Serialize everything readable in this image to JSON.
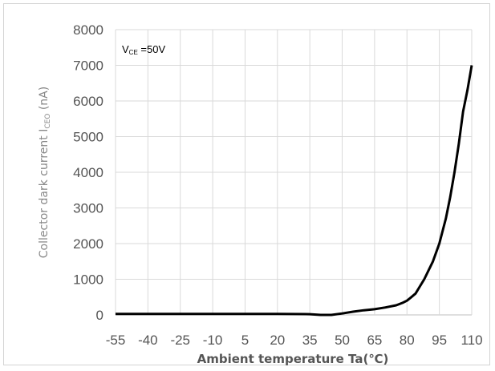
{
  "chart_data": {
    "type": "line",
    "title": "",
    "annotation": {
      "main": "V",
      "sub": "CE",
      "rest": " =50V"
    },
    "xlabel": "Ambient temperature Ta(℃)",
    "ylabel": {
      "main": "Collector dark current I",
      "sub": "CEO",
      "unit": " (nA)"
    },
    "x_ticks": [
      "-55",
      "-40",
      "-25",
      "-10",
      "5",
      "20",
      "35",
      "50",
      "65",
      "80",
      "95",
      "110"
    ],
    "y_ticks": [
      "0",
      "1000",
      "2000",
      "3000",
      "4000",
      "5000",
      "6000",
      "7000",
      "8000"
    ],
    "xlim": [
      -55,
      110
    ],
    "ylim": [
      0,
      8000
    ],
    "grid": true,
    "series": [
      {
        "color": "#000000",
        "x": [
          -55,
          -40,
          -25,
          -10,
          5,
          20,
          35,
          40,
          45,
          50,
          55,
          60,
          65,
          70,
          75,
          78,
          80,
          82,
          84,
          86,
          88,
          90,
          92,
          95,
          98,
          100,
          102,
          104,
          106,
          108,
          110
        ],
        "y": [
          30,
          30,
          30,
          30,
          30,
          30,
          20,
          0,
          0,
          40,
          90,
          130,
          160,
          210,
          270,
          340,
          400,
          500,
          600,
          800,
          1000,
          1250,
          1500,
          2000,
          2700,
          3300,
          4000,
          4800,
          5700,
          6300,
          7000
        ]
      }
    ]
  }
}
